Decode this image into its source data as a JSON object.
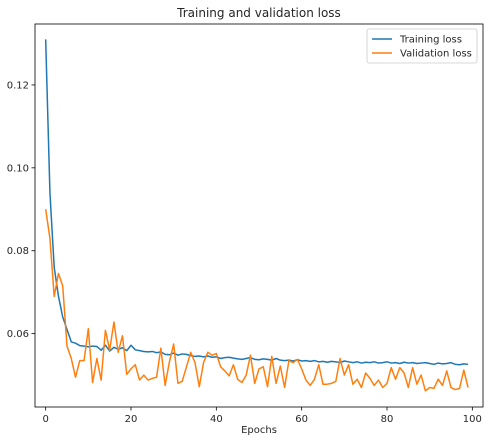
{
  "chart_data": {
    "type": "line",
    "title": "Training and validation loss",
    "xlabel": "Epochs",
    "ylabel": "",
    "xlim": [
      -2.5,
      102.5
    ],
    "ylim": [
      0.0423,
      0.1347
    ],
    "xticks": [
      0,
      20,
      40,
      60,
      80,
      100
    ],
    "yticks": [
      0.06,
      0.08,
      0.1,
      0.12
    ],
    "xtick_labels": [
      "0",
      "20",
      "40",
      "60",
      "80",
      "100"
    ],
    "ytick_labels": [
      "0.06",
      "0.08",
      "0.10",
      "0.12"
    ],
    "grid": false,
    "legend_position": "top-right",
    "series": [
      {
        "name": "Training loss",
        "color": "#1f77b4",
        "x": [
          0,
          1,
          2,
          3,
          4,
          5,
          6,
          7,
          8,
          9,
          10,
          11,
          12,
          13,
          14,
          15,
          16,
          17,
          18,
          19,
          20,
          21,
          22,
          23,
          24,
          25,
          26,
          27,
          28,
          29,
          30,
          31,
          32,
          33,
          34,
          35,
          36,
          37,
          38,
          39,
          40,
          41,
          42,
          43,
          44,
          45,
          46,
          47,
          48,
          49,
          50,
          51,
          52,
          53,
          54,
          55,
          56,
          57,
          58,
          59,
          60,
          61,
          62,
          63,
          64,
          65,
          66,
          67,
          68,
          69,
          70,
          71,
          72,
          73,
          74,
          75,
          76,
          77,
          78,
          79,
          80,
          81,
          82,
          83,
          84,
          85,
          86,
          87,
          88,
          89,
          90,
          91,
          92,
          93,
          94,
          95,
          96,
          97,
          98,
          99
        ],
        "values": [
          0.131,
          0.094,
          0.076,
          0.069,
          0.064,
          0.061,
          0.058,
          0.0577,
          0.0571,
          0.057,
          0.0568,
          0.057,
          0.0569,
          0.056,
          0.0572,
          0.0558,
          0.0567,
          0.0562,
          0.0566,
          0.0559,
          0.0572,
          0.0561,
          0.0559,
          0.0557,
          0.0556,
          0.0557,
          0.0554,
          0.0556,
          0.055,
          0.0549,
          0.0553,
          0.0548,
          0.0551,
          0.055,
          0.0547,
          0.0545,
          0.0546,
          0.0544,
          0.0546,
          0.0543,
          0.0544,
          0.054,
          0.0542,
          0.0543,
          0.0541,
          0.0539,
          0.0538,
          0.054,
          0.0542,
          0.0538,
          0.0537,
          0.0539,
          0.0538,
          0.0536,
          0.054,
          0.0536,
          0.0535,
          0.0536,
          0.0534,
          0.0537,
          0.0534,
          0.0535,
          0.0533,
          0.0535,
          0.0532,
          0.0533,
          0.0531,
          0.0533,
          0.0532,
          0.053,
          0.0534,
          0.0532,
          0.053,
          0.0532,
          0.0529,
          0.0531,
          0.053,
          0.0532,
          0.0529,
          0.053,
          0.0532,
          0.0529,
          0.053,
          0.0528,
          0.0531,
          0.0529,
          0.053,
          0.0528,
          0.0529,
          0.053,
          0.0528,
          0.0526,
          0.0529,
          0.0527,
          0.0528,
          0.053,
          0.0526,
          0.0525,
          0.0527,
          0.0526
        ]
      },
      {
        "name": "Validation loss",
        "color": "#ff7f0e",
        "x": [
          0,
          1,
          2,
          3,
          4,
          5,
          6,
          7,
          8,
          9,
          10,
          11,
          12,
          13,
          14,
          15,
          16,
          17,
          18,
          19,
          20,
          21,
          22,
          23,
          24,
          25,
          26,
          27,
          28,
          29,
          30,
          31,
          32,
          33,
          34,
          35,
          36,
          37,
          38,
          39,
          40,
          41,
          42,
          43,
          44,
          45,
          46,
          47,
          48,
          49,
          50,
          51,
          52,
          53,
          54,
          55,
          56,
          57,
          58,
          59,
          60,
          61,
          62,
          63,
          64,
          65,
          66,
          67,
          68,
          69,
          70,
          71,
          72,
          73,
          74,
          75,
          76,
          77,
          78,
          79,
          80,
          81,
          82,
          83,
          84,
          85,
          86,
          87,
          88,
          89,
          90,
          91,
          92,
          93,
          94,
          95,
          96,
          97,
          98,
          99
        ],
        "values": [
          0.09,
          0.083,
          0.069,
          0.0745,
          0.0715,
          0.057,
          0.054,
          0.0495,
          0.0535,
          0.0535,
          0.0612,
          0.0482,
          0.054,
          0.0488,
          0.0608,
          0.056,
          0.0628,
          0.0555,
          0.0595,
          0.0502,
          0.0515,
          0.0525,
          0.0488,
          0.05,
          0.0488,
          0.0492,
          0.0495,
          0.0565,
          0.0475,
          0.0532,
          0.0575,
          0.048,
          0.0485,
          0.052,
          0.0555,
          0.053,
          0.0472,
          0.053,
          0.0555,
          0.0548,
          0.0552,
          0.052,
          0.051,
          0.0498,
          0.0525,
          0.049,
          0.0482,
          0.05,
          0.0548,
          0.048,
          0.0515,
          0.052,
          0.0472,
          0.0545,
          0.048,
          0.0522,
          0.047,
          0.0535,
          0.053,
          0.0538,
          0.0515,
          0.0488,
          0.0475,
          0.049,
          0.0525,
          0.0478,
          0.0478,
          0.048,
          0.0485,
          0.054,
          0.05,
          0.0525,
          0.0478,
          0.049,
          0.047,
          0.0505,
          0.0492,
          0.0475,
          0.0488,
          0.047,
          0.048,
          0.0518,
          0.049,
          0.0518,
          0.0505,
          0.047,
          0.0518,
          0.0478,
          0.05,
          0.0462,
          0.047,
          0.0468,
          0.049,
          0.0475,
          0.051,
          0.047,
          0.0465,
          0.0468,
          0.0512,
          0.047
        ]
      }
    ]
  }
}
